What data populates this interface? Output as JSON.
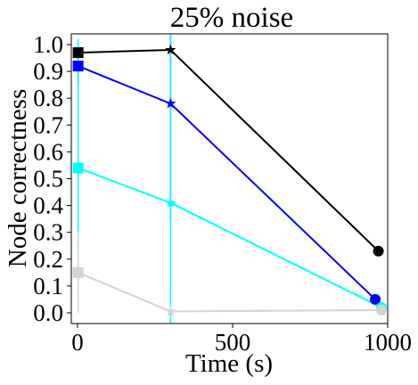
{
  "chart_data": {
    "type": "line",
    "title": "25% noise",
    "xlabel": "Time (s)",
    "ylabel": "Node correctness",
    "xlim": [
      -20,
      1000
    ],
    "ylim": [
      -0.04,
      1.04
    ],
    "x_ticks": [
      0,
      500,
      1000
    ],
    "x_tick_labels": [
      "0",
      "500",
      "1000"
    ],
    "y_ticks": [
      0.0,
      0.1,
      0.2,
      0.3,
      0.4,
      0.5,
      0.6,
      0.7,
      0.8,
      0.9,
      1.0
    ],
    "y_tick_labels": [
      "0.0",
      "0.1",
      "0.2",
      "0.3",
      "0.4",
      "0.5",
      "0.6",
      "0.7",
      "0.8",
      "0.9",
      "1.0"
    ],
    "grid": false,
    "marker_order": [
      "square",
      "star",
      "circle"
    ],
    "series": [
      {
        "color": "#000000",
        "x": [
          2,
          300,
          970
        ],
        "y": [
          0.97,
          0.98,
          0.23
        ],
        "error": [
          null,
          null,
          null
        ]
      },
      {
        "color": "#0000ff",
        "x": [
          2,
          300,
          960
        ],
        "y": [
          0.92,
          0.78,
          0.05
        ],
        "error": [
          [
            0.86,
            0.96
          ],
          [
            0.35,
            1.05
          ],
          null
        ]
      },
      {
        "color": "#00ffff",
        "x": [
          2,
          300,
          980
        ],
        "y": [
          0.54,
          0.41,
          0.02
        ],
        "error": [
          [
            0.06,
            1.02
          ],
          [
            -0.04,
            1.05
          ],
          null
        ]
      },
      {
        "color": "#d3d3d3",
        "x": [
          2,
          300,
          980
        ],
        "y": [
          0.15,
          0.005,
          0.01
        ],
        "error": [
          [
            0.0,
            0.3
          ],
          null,
          null
        ]
      }
    ]
  }
}
